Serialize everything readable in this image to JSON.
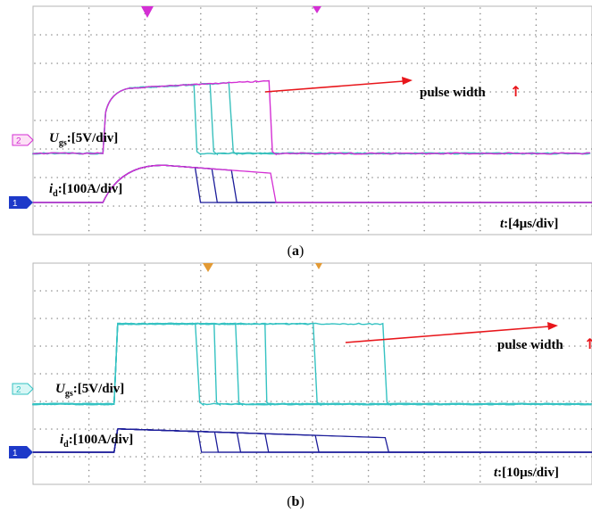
{
  "colors": {
    "gs_a": "#d42fd4",
    "gs_b": "#35c2c2",
    "teal_a": "#39c0bd",
    "id_trace": "#1c1d9a",
    "id_a_late": "#d42fd4",
    "ch1_marker": "#1d39c9",
    "grid": "#8c8c8c",
    "annotation": "#e8161b",
    "trigger_b": "#e39a34"
  },
  "panels": [
    {
      "caption_letter": "a",
      "channel_markers": [
        "2",
        "1"
      ],
      "ugs_symbol": "U",
      "ugs_subscript": "gs",
      "ugs_scale": ":[5V/div]",
      "id_symbol": "i",
      "id_subscript": "d",
      "id_scale": ":[100A/div]",
      "t_symbol": "t",
      "t_scale": ":[4µs/div]",
      "annotation": "pulse width",
      "arrow_glyph": "↑",
      "chart_data": {
        "type": "line",
        "x_unit": "µs",
        "x_div": 4,
        "y_div_ugs": 5,
        "y_div_id": 100,
        "turn_on_us": 5.0,
        "turn_off_us": [
          11.6,
          12.8,
          14.2,
          17.0
        ],
        "ugs_on_div": 2.6,
        "id_peak_div": 1.3
      }
    },
    {
      "caption_letter": "b",
      "channel_markers": [
        "2",
        "1"
      ],
      "ugs_symbol": "U",
      "ugs_subscript": "gs",
      "ugs_scale": ":[5V/div]",
      "id_symbol": "i",
      "id_subscript": "d",
      "id_scale": ":[100A/div]",
      "t_symbol": "t",
      "t_scale": ":[10µs/div]",
      "annotation": "pulse width",
      "arrow_glyph": "↑",
      "chart_data": {
        "type": "line",
        "x_unit": "µs",
        "x_div": 10,
        "y_div_ugs": 5,
        "y_div_id": 100,
        "turn_on_us": 14.5,
        "turn_off_us": [
          29.5,
          32.5,
          36.5,
          41.5,
          50.5,
          63.0
        ],
        "ugs_on_div": 2.9,
        "id_peak_div": 0.85
      }
    }
  ]
}
